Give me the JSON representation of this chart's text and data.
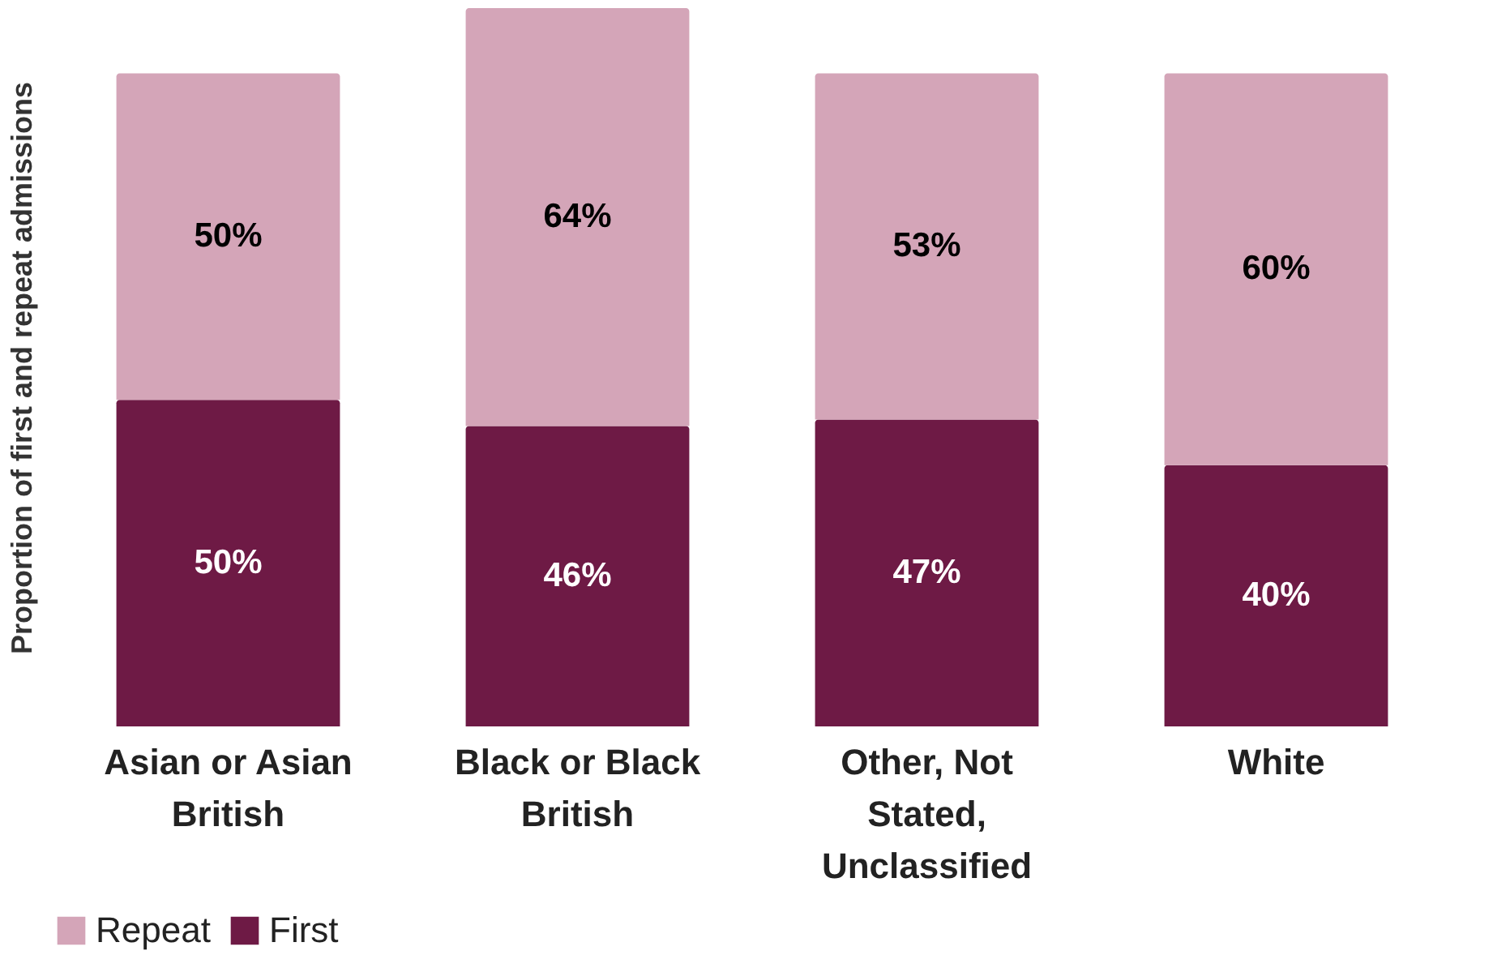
{
  "chart_data": {
    "type": "bar",
    "stacked": true,
    "relative": false,
    "ylabel": "Proportion of first and repeat admissions",
    "categories": [
      "Asian or Asian British",
      "Black or Black British",
      "Other, Not Stated, Unclassified",
      "White"
    ],
    "series": [
      {
        "name": "First",
        "color": "#6e1a45",
        "values": [
          50,
          46,
          47,
          40
        ],
        "value_labels": [
          "50%",
          "46%",
          "47%",
          "40%"
        ]
      },
      {
        "name": "Repeat",
        "color": "#d4a5b8",
        "values": [
          50,
          64,
          53,
          60
        ],
        "value_labels": [
          "50%",
          "64%",
          "53%",
          "60%"
        ]
      }
    ],
    "legend": "bottom",
    "grid": false
  }
}
